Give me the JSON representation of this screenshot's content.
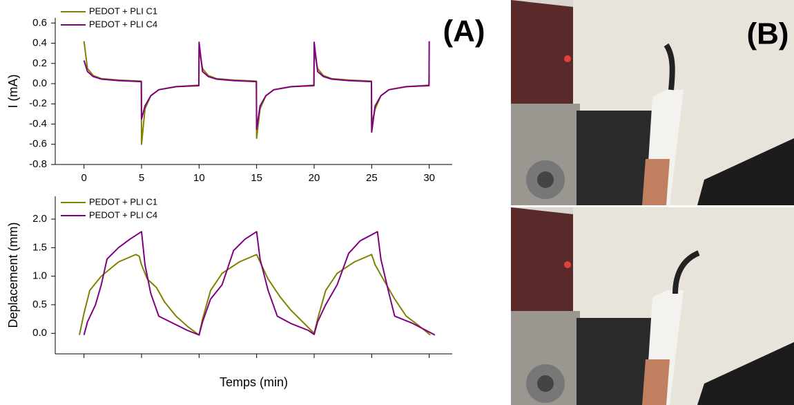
{
  "chart_data": [
    {
      "type": "line",
      "ylabel": "I (mA)",
      "xlim": [
        -2.5,
        32
      ],
      "xticks": [
        0,
        5,
        10,
        15,
        20,
        25,
        30
      ],
      "ylim": [
        -0.8,
        0.65
      ],
      "yticks": [
        -0.8,
        -0.6,
        -0.4,
        -0.2,
        {
          "value": 0,
          "label": "0.0"
        },
        0.2,
        0.4,
        0.6
      ],
      "legend": "upper left",
      "x": [
        0,
        0.3,
        0.8,
        1.5,
        3,
        4.98,
        5,
        5.3,
        5.8,
        6.5,
        8,
        9.98,
        10,
        10.3,
        10.8,
        11.5,
        13,
        14.98,
        15,
        15.3,
        15.8,
        16.5,
        18,
        19.98,
        20,
        20.3,
        20.8,
        21.5,
        23,
        24.98,
        25,
        25.3,
        25.8,
        26.5,
        28,
        29.98,
        30
      ],
      "series": [
        {
          "name": "PEDOT + PLI C1",
          "color": "#808000",
          "values": [
            0.42,
            0.15,
            0.08,
            0.05,
            0.035,
            0.025,
            -0.6,
            -0.25,
            -0.12,
            -0.06,
            -0.03,
            -0.015,
            0.35,
            0.15,
            0.08,
            0.05,
            0.035,
            0.025,
            -0.54,
            -0.25,
            -0.12,
            -0.06,
            -0.03,
            -0.015,
            0.32,
            0.15,
            0.08,
            0.05,
            0.035,
            0.025,
            -0.4,
            -0.25,
            -0.12,
            -0.06,
            -0.03,
            -0.015,
            0.08
          ]
        },
        {
          "name": "PEDOT + PLI C4",
          "color": "#800080",
          "values": [
            0.23,
            0.12,
            0.07,
            0.045,
            0.03,
            0.02,
            -0.35,
            -0.22,
            -0.12,
            -0.06,
            -0.03,
            -0.02,
            0.41,
            0.12,
            0.07,
            0.045,
            0.03,
            0.02,
            -0.45,
            -0.22,
            -0.12,
            -0.06,
            -0.03,
            -0.02,
            0.41,
            0.12,
            0.07,
            0.045,
            0.03,
            0.02,
            -0.48,
            -0.22,
            -0.12,
            -0.06,
            -0.03,
            -0.02,
            0.42
          ]
        }
      ]
    },
    {
      "type": "line",
      "xlabel": "Temps (min)",
      "ylabel": "Deplacement (mm)",
      "xlim": [
        -2.5,
        32
      ],
      "xticks": [
        0,
        5,
        10,
        15,
        20,
        25,
        30
      ],
      "ylim": [
        -0.36,
        2.4
      ],
      "yticks": [
        {
          "value": 0,
          "label": "0.0"
        },
        0.5,
        {
          "value": 1,
          "label": "1.0"
        },
        1.5,
        {
          "value": 2,
          "label": "2.0"
        }
      ],
      "legend": "upper left",
      "series": [
        {
          "name": "PEDOT + PLI C1",
          "color": "#808000",
          "x": [
            -0.4,
            0,
            0.5,
            1.5,
            3,
            4.5,
            4.8,
            5,
            5.5,
            6.3,
            7,
            8,
            9,
            10,
            10.3,
            11,
            12,
            13.5,
            15,
            15.3,
            16,
            17,
            18,
            19,
            20,
            20.3,
            21,
            22,
            23.5,
            25,
            25.3,
            26,
            27,
            28,
            29,
            30.1
          ],
          "values": [
            -0.03,
            0.35,
            0.75,
            1.0,
            1.25,
            1.38,
            1.35,
            1.2,
            0.95,
            0.8,
            0.55,
            0.3,
            0.12,
            -0.03,
            0.25,
            0.75,
            1.05,
            1.25,
            1.38,
            1.25,
            0.95,
            0.65,
            0.4,
            0.2,
            0.0,
            0.25,
            0.75,
            1.05,
            1.25,
            1.38,
            1.2,
            0.95,
            0.6,
            0.3,
            0.15,
            -0.03
          ]
        },
        {
          "name": "PEDOT + PLI C4",
          "color": "#800080",
          "x": [
            0,
            0.3,
            1,
            1.5,
            2,
            3,
            4,
            5,
            5.3,
            5.8,
            6.5,
            7.5,
            9,
            10,
            10.3,
            11,
            12,
            13,
            14,
            15,
            15.3,
            16,
            16.8,
            18,
            19.5,
            20,
            20.3,
            21,
            22,
            23,
            24,
            25.5,
            25.8,
            26.5,
            27,
            28.5,
            30.5
          ],
          "values": [
            -0.03,
            0.2,
            0.5,
            0.85,
            1.3,
            1.5,
            1.65,
            1.78,
            1.2,
            0.7,
            0.3,
            0.2,
            0.05,
            -0.03,
            0.2,
            0.6,
            0.85,
            1.45,
            1.65,
            1.78,
            1.3,
            0.75,
            0.3,
            0.17,
            0.05,
            -0.02,
            0.2,
            0.5,
            0.85,
            1.4,
            1.62,
            1.78,
            1.3,
            0.7,
            0.3,
            0.18,
            -0.03
          ]
        }
      ]
    }
  ],
  "panel_labels": [
    "(A)",
    "(B)"
  ]
}
